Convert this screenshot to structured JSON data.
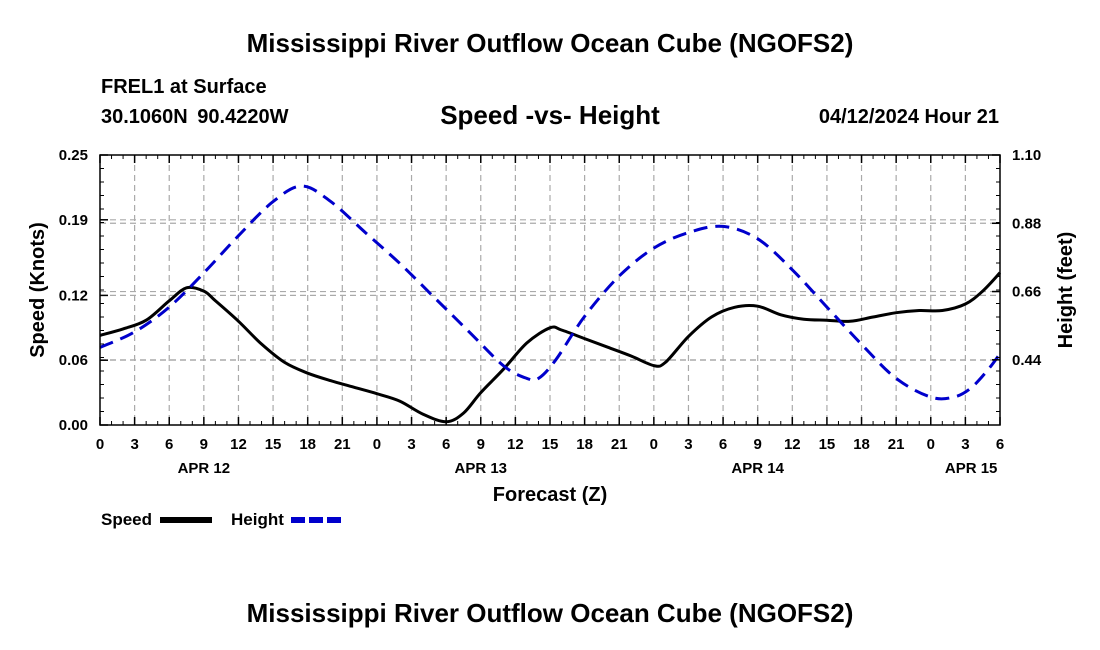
{
  "header": {
    "title": "Mississippi River Outflow Ocean Cube (NGOFS2)",
    "station": "FREL1 at Surface",
    "coords": "30.1060N  90.4220W",
    "subtitle": "Speed -vs- Height",
    "datetime": "04/12/2024 Hour 21"
  },
  "footer": {
    "title": "Mississippi River Outflow Ocean Cube (NGOFS2)"
  },
  "colors": {
    "speed": "#000000",
    "height": "#0000cc",
    "grid": "#aaaaaa"
  },
  "chart_data": {
    "type": "line",
    "xlabel": "Forecast (Z)",
    "ylabel": "Speed (Knots)",
    "y2label": "Height (feet)",
    "xlim": [
      0,
      78
    ],
    "ylim": [
      0,
      0.25
    ],
    "y2lim": [
      0.23,
      1.1
    ],
    "x_ticks": [
      0,
      3,
      6,
      9,
      12,
      15,
      18,
      21,
      24,
      27,
      30,
      33,
      36,
      39,
      42,
      45,
      48,
      51,
      54,
      57,
      60,
      63,
      66,
      69,
      72,
      75,
      78
    ],
    "x_tick_labels": [
      "0",
      "3",
      "6",
      "9",
      "12",
      "15",
      "18",
      "21",
      "0",
      "3",
      "6",
      "9",
      "12",
      "15",
      "18",
      "21",
      "0",
      "3",
      "6",
      "9",
      "12",
      "15",
      "18",
      "21",
      "0",
      "3",
      "6"
    ],
    "date_labels": [
      {
        "x": 9,
        "label": "APR 12"
      },
      {
        "x": 33,
        "label": "APR 13"
      },
      {
        "x": 57,
        "label": "APR 14"
      },
      {
        "x": 75.5,
        "label": "APR 15"
      }
    ],
    "y_ticks": [
      0.0,
      0.06,
      0.12,
      0.19,
      0.25
    ],
    "y_tick_labels": [
      "0.00",
      "0.06",
      "0.12",
      "0.19",
      "0.25"
    ],
    "y2_ticks": [
      0.44,
      0.66,
      0.88,
      1.1
    ],
    "y2_tick_labels": [
      "0.44",
      "0.66",
      "0.88",
      "1.10"
    ],
    "series": [
      {
        "name": "Speed",
        "axis": "left",
        "style": "solid",
        "x": [
          0,
          2,
          4,
          6,
          7.5,
          9,
          10,
          12,
          14,
          16,
          18,
          20,
          22,
          24,
          26,
          28,
          30,
          31.5,
          33,
          35,
          37,
          39,
          40,
          42,
          44,
          46,
          48,
          49,
          51,
          53,
          55,
          57,
          59,
          61,
          63,
          65,
          67,
          69,
          71,
          73,
          75,
          76.5,
          78
        ],
        "y": [
          0.083,
          0.089,
          0.097,
          0.115,
          0.127,
          0.124,
          0.115,
          0.096,
          0.075,
          0.058,
          0.048,
          0.041,
          0.035,
          0.029,
          0.022,
          0.01,
          0.003,
          0.011,
          0.03,
          0.052,
          0.076,
          0.09,
          0.088,
          0.08,
          0.072,
          0.064,
          0.055,
          0.058,
          0.082,
          0.1,
          0.109,
          0.11,
          0.102,
          0.098,
          0.097,
          0.096,
          0.1,
          0.104,
          0.106,
          0.106,
          0.112,
          0.124,
          0.141
        ]
      },
      {
        "name": "Height",
        "axis": "right",
        "style": "dashed",
        "x": [
          0,
          3,
          6,
          9,
          12,
          15,
          17.5,
          20,
          23,
          26,
          29,
          32,
          35,
          37,
          38,
          39.5,
          42,
          45,
          48,
          51,
          54,
          57,
          60,
          63,
          66,
          69,
          72,
          74,
          75.5,
          77,
          78
        ],
        "y": [
          0.48,
          0.53,
          0.61,
          0.72,
          0.84,
          0.95,
          1.0,
          0.95,
          0.85,
          0.75,
          0.64,
          0.53,
          0.42,
          0.38,
          0.38,
          0.44,
          0.58,
          0.71,
          0.8,
          0.85,
          0.87,
          0.83,
          0.73,
          0.61,
          0.49,
          0.38,
          0.32,
          0.32,
          0.35,
          0.41,
          0.46
        ]
      }
    ],
    "legend": [
      {
        "label": "Speed",
        "style": "solid"
      },
      {
        "label": "Height",
        "style": "dashed"
      }
    ]
  }
}
